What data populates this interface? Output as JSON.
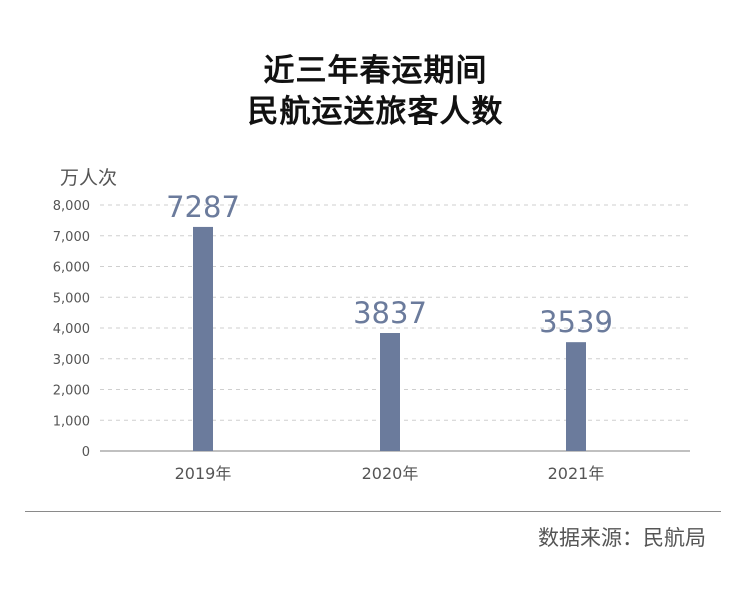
{
  "chart_data": {
    "type": "bar",
    "title_lines": [
      "近三年春运期间",
      "民航运送旅客人数"
    ],
    "unit": "万人次",
    "categories": [
      "2019年",
      "2020年",
      "2021年"
    ],
    "values": [
      7287,
      3837,
      3539
    ],
    "value_labels": [
      "7287",
      "3837",
      "3539"
    ],
    "yticks": [
      "0",
      "1,000",
      "2,000",
      "3,000",
      "4,000",
      "5,000",
      "6,000",
      "7,000",
      "8,000"
    ],
    "ylim": [
      0,
      8000
    ],
    "grid": true,
    "bar_color": "#6b7b9c",
    "label_color": "#6b7b9c"
  },
  "source": "数据来源：民航局"
}
